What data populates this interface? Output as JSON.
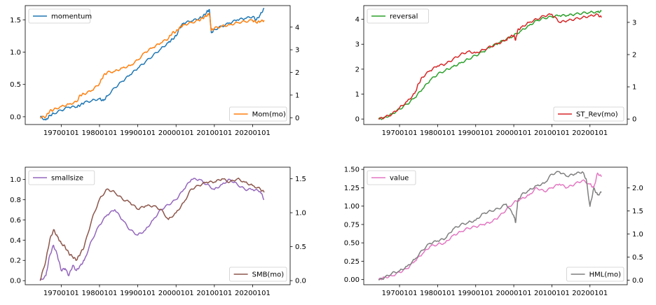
{
  "chart_data": [
    {
      "type": "line",
      "left_axis": {
        "ticks": [
          0.0,
          0.5,
          1.0,
          1.5
        ],
        "tick_labels": [
          "0.0",
          "0.5",
          "1.0",
          "1.5"
        ],
        "ylim": [
          -0.12,
          1.72
        ]
      },
      "right_axis": {
        "ticks": [
          0,
          1,
          2,
          3,
          4
        ],
        "tick_labels": [
          "0",
          "1",
          "2",
          "3",
          "4"
        ],
        "ylim": [
          -0.3,
          4.95
        ]
      },
      "x_tick_labels": [
        "19700101",
        "19800101",
        "19900101",
        "20000101",
        "20100101",
        "20200101"
      ],
      "x_ticks": [
        1970,
        1980,
        1990,
        2000,
        2010,
        2020
      ],
      "xlim": [
        1960.6,
        2029.8
      ],
      "series": [
        {
          "name": "momentum",
          "axis": "left",
          "color": "#1f77b4",
          "legend_loc": "upper left",
          "x": [
            1964.5,
            1966,
            1967,
            1968,
            1970,
            1972,
            1974,
            1975,
            1976,
            1978,
            1980,
            1981,
            1982,
            1984,
            1986,
            1988,
            1990,
            1992,
            1994,
            1996,
            1998,
            1999,
            2000,
            2001,
            2002,
            2004,
            2006,
            2007,
            2008,
            2008.7,
            2009.2,
            2010,
            2012,
            2014,
            2016,
            2018,
            2020,
            2021,
            2022,
            2023
          ],
          "values": [
            0.0,
            -0.05,
            0.02,
            0.05,
            0.1,
            0.15,
            0.15,
            0.18,
            0.22,
            0.25,
            0.28,
            0.25,
            0.32,
            0.45,
            0.55,
            0.65,
            0.75,
            0.85,
            0.95,
            1.05,
            1.15,
            1.2,
            1.25,
            1.38,
            1.45,
            1.48,
            1.52,
            1.55,
            1.62,
            1.66,
            1.3,
            1.35,
            1.4,
            1.45,
            1.5,
            1.52,
            1.55,
            1.5,
            1.58,
            1.68
          ]
        },
        {
          "name": "Mom(mo)",
          "axis": "right",
          "color": "#ff7f0e",
          "legend_loc": "lower right",
          "x": [
            1964.5,
            1966,
            1967,
            1968,
            1970,
            1972,
            1974,
            1975,
            1976,
            1978,
            1980,
            1981,
            1982,
            1984,
            1986,
            1988,
            1990,
            1992,
            1994,
            1996,
            1998,
            1999,
            2000,
            2001,
            2002,
            2004,
            2006,
            2007,
            2008,
            2008.7,
            2009.2,
            2010,
            2012,
            2014,
            2016,
            2018,
            2020,
            2021,
            2022,
            2023
          ],
          "values": [
            0.0,
            0.05,
            0.3,
            0.35,
            0.5,
            0.6,
            0.7,
            1.0,
            1.05,
            1.2,
            1.5,
            1.85,
            2.0,
            2.05,
            2.2,
            2.3,
            2.55,
            2.9,
            3.1,
            3.3,
            3.5,
            3.75,
            3.8,
            4.0,
            4.1,
            4.2,
            4.3,
            4.4,
            4.5,
            4.6,
            3.85,
            3.95,
            4.05,
            4.1,
            4.2,
            4.25,
            4.3,
            4.2,
            4.25,
            4.3
          ]
        }
      ]
    },
    {
      "type": "line",
      "left_axis": {
        "ticks": [
          0,
          1,
          2,
          3,
          4
        ],
        "tick_labels": [
          "0",
          "1",
          "2",
          "3",
          "4"
        ],
        "ylim": [
          -0.22,
          4.55
        ]
      },
      "right_axis": {
        "ticks": [
          0,
          1,
          2,
          3
        ],
        "tick_labels": [
          "0",
          "1",
          "2",
          "3"
        ],
        "ylim": [
          -0.17,
          3.52
        ]
      },
      "x_tick_labels": [
        "19700101",
        "19800101",
        "19900101",
        "20000101",
        "20100101",
        "20200101"
      ],
      "x_ticks": [
        1970,
        1980,
        1990,
        2000,
        2010,
        2020
      ],
      "xlim": [
        1960.6,
        2029.8
      ],
      "series": [
        {
          "name": "reversal",
          "axis": "left",
          "color": "#2ca02c",
          "legend_loc": "upper left",
          "x": [
            1964.5,
            1966,
            1968,
            1970,
            1972,
            1974,
            1976,
            1978,
            1980,
            1982,
            1984,
            1986,
            1988,
            1990,
            1992,
            1994,
            1996,
            1998,
            2000,
            2002,
            2004,
            2006,
            2008,
            2010,
            2012,
            2014,
            2016,
            2018,
            2020,
            2022,
            2023
          ],
          "values": [
            0.0,
            0.05,
            0.2,
            0.4,
            0.6,
            0.85,
            1.2,
            1.55,
            1.8,
            1.95,
            2.1,
            2.25,
            2.4,
            2.55,
            2.7,
            2.9,
            3.05,
            3.2,
            3.35,
            3.55,
            3.75,
            3.95,
            4.05,
            4.1,
            4.15,
            4.15,
            4.2,
            4.25,
            4.28,
            4.3,
            4.32
          ]
        },
        {
          "name": "ST_Rev(mo)",
          "axis": "right",
          "color": "#d62728",
          "legend_loc": "lower right",
          "x": [
            1964.5,
            1966,
            1968,
            1970,
            1972,
            1974,
            1975,
            1976,
            1978,
            1980,
            1982,
            1984,
            1986,
            1988,
            1990,
            1992,
            1994,
            1996,
            1998,
            1999,
            2000,
            2000.5,
            2001,
            2002,
            2004,
            2006,
            2008,
            2010,
            2012,
            2014,
            2016,
            2018,
            2020,
            2022,
            2023
          ],
          "values": [
            0.0,
            0.05,
            0.15,
            0.35,
            0.55,
            0.8,
            1.1,
            1.3,
            1.5,
            1.65,
            1.7,
            1.85,
            2.0,
            2.1,
            2.05,
            2.15,
            2.25,
            2.35,
            2.45,
            2.55,
            2.6,
            2.45,
            2.75,
            2.85,
            3.0,
            3.1,
            3.2,
            3.25,
            3.0,
            3.05,
            3.1,
            3.15,
            3.2,
            3.25,
            3.15
          ]
        }
      ]
    },
    {
      "type": "line",
      "left_axis": {
        "ticks": [
          0.0,
          0.2,
          0.4,
          0.6,
          0.8,
          1.0
        ],
        "tick_labels": [
          "0.0",
          "0.2",
          "0.4",
          "0.6",
          "0.8",
          "1.0"
        ],
        "ylim": [
          -0.04,
          1.12
        ]
      },
      "right_axis": {
        "ticks": [
          0.0,
          0.5,
          1.0,
          1.5
        ],
        "tick_labels": [
          "0.0",
          "0.5",
          "1.0",
          "1.5"
        ],
        "ylim": [
          -0.06,
          1.67
        ]
      },
      "x_tick_labels": [
        "19700101",
        "19800101",
        "19900101",
        "20000101",
        "20100101",
        "20200101"
      ],
      "x_ticks": [
        1970,
        1980,
        1990,
        2000,
        2010,
        2020
      ],
      "xlim": [
        1960.6,
        2029.8
      ],
      "series": [
        {
          "name": "smallsize",
          "axis": "left",
          "color": "#9467bd",
          "legend_loc": "upper left",
          "x": [
            1964.5,
            1966,
            1967,
            1968,
            1969,
            1970,
            1971,
            1972,
            1973,
            1974,
            1975,
            1976,
            1978,
            1980,
            1982,
            1984,
            1986,
            1988,
            1990,
            1992,
            1994,
            1996,
            1998,
            2000,
            2002,
            2004,
            2006,
            2008,
            2010,
            2012,
            2014,
            2016,
            2018,
            2020,
            2022,
            2023
          ],
          "values": [
            0.0,
            0.05,
            0.25,
            0.35,
            0.25,
            0.1,
            0.12,
            0.05,
            0.15,
            0.1,
            0.15,
            0.2,
            0.4,
            0.55,
            0.65,
            0.7,
            0.6,
            0.5,
            0.45,
            0.5,
            0.6,
            0.7,
            0.75,
            0.8,
            0.9,
            1.0,
            1.0,
            0.95,
            0.9,
            0.95,
            1.0,
            0.95,
            0.9,
            0.9,
            0.88,
            0.8
          ]
        },
        {
          "name": "SMB(mo)",
          "axis": "right",
          "color": "#8c564b",
          "legend_loc": "lower right",
          "x": [
            1964.5,
            1966,
            1967,
            1968,
            1969,
            1970,
            1971,
            1972,
            1973,
            1974,
            1975,
            1976,
            1978,
            1980,
            1982,
            1984,
            1986,
            1988,
            1990,
            1992,
            1994,
            1996,
            1998,
            2000,
            2002,
            2004,
            2006,
            2008,
            2010,
            2012,
            2014,
            2016,
            2018,
            2020,
            2022,
            2023
          ],
          "values": [
            0.0,
            0.3,
            0.6,
            0.75,
            0.65,
            0.55,
            0.5,
            0.4,
            0.35,
            0.3,
            0.4,
            0.5,
            0.9,
            1.2,
            1.35,
            1.3,
            1.2,
            1.15,
            1.05,
            1.1,
            1.1,
            1.05,
            0.9,
            1.0,
            1.15,
            1.35,
            1.4,
            1.45,
            1.45,
            1.5,
            1.45,
            1.5,
            1.45,
            1.4,
            1.35,
            1.3
          ]
        }
      ]
    },
    {
      "type": "line",
      "left_axis": {
        "ticks": [
          0.0,
          0.25,
          0.5,
          0.75,
          1.0,
          1.25,
          1.5
        ],
        "tick_labels": [
          "0.00",
          "0.25",
          "0.50",
          "0.75",
          "1.00",
          "1.25",
          "1.50"
        ],
        "ylim": [
          -0.07,
          1.53
        ]
      },
      "right_axis": {
        "ticks": [
          0.0,
          0.5,
          1.0,
          1.5,
          2.0
        ],
        "tick_labels": [
          "0.0",
          "0.5",
          "1.0",
          "1.5",
          "2.0"
        ],
        "ylim": [
          -0.1,
          2.45
        ]
      },
      "x_tick_labels": [
        "19700101",
        "19800101",
        "19900101",
        "20000101",
        "20100101",
        "20200101"
      ],
      "x_ticks": [
        1970,
        1980,
        1990,
        2000,
        2010,
        2020
      ],
      "xlim": [
        1960.6,
        2029.8
      ],
      "series": [
        {
          "name": "value",
          "axis": "left",
          "color": "#e377c2",
          "legend_loc": "upper left",
          "x": [
            1964.5,
            1966,
            1968,
            1970,
            1972,
            1974,
            1976,
            1978,
            1980,
            1982,
            1984,
            1986,
            1988,
            1990,
            1992,
            1994,
            1996,
            1998,
            2000,
            2002,
            2004,
            2006,
            2008,
            2010,
            2012,
            2014,
            2016,
            2018,
            2020,
            2021,
            2022,
            2023
          ],
          "values": [
            0.0,
            0.03,
            0.05,
            0.1,
            0.15,
            0.25,
            0.35,
            0.45,
            0.48,
            0.5,
            0.6,
            0.65,
            0.7,
            0.72,
            0.75,
            0.78,
            0.85,
            0.95,
            1.05,
            1.1,
            1.15,
            1.25,
            1.2,
            1.25,
            1.3,
            1.25,
            1.3,
            1.35,
            1.3,
            1.25,
            1.45,
            1.4
          ]
        },
        {
          "name": "HML(mo)",
          "axis": "right",
          "color": "#7f7f7f",
          "legend_loc": "lower right",
          "x": [
            1964.5,
            1966,
            1968,
            1970,
            1972,
            1974,
            1976,
            1978,
            1980,
            1982,
            1984,
            1986,
            1988,
            1990,
            1992,
            1994,
            1996,
            1998,
            2000,
            2000.5,
            2001,
            2002,
            2004,
            2006,
            2008,
            2010,
            2012,
            2014,
            2016,
            2018,
            2019,
            2020,
            2021,
            2022,
            2023
          ],
          "values": [
            0.0,
            0.05,
            0.15,
            0.2,
            0.3,
            0.45,
            0.65,
            0.8,
            0.85,
            0.9,
            1.1,
            1.2,
            1.25,
            1.3,
            1.45,
            1.5,
            1.55,
            1.65,
            1.4,
            1.25,
            1.7,
            1.85,
            1.95,
            2.05,
            2.1,
            2.3,
            2.35,
            2.25,
            2.3,
            2.35,
            2.2,
            1.6,
            2.0,
            1.85,
            1.9
          ]
        }
      ]
    }
  ]
}
